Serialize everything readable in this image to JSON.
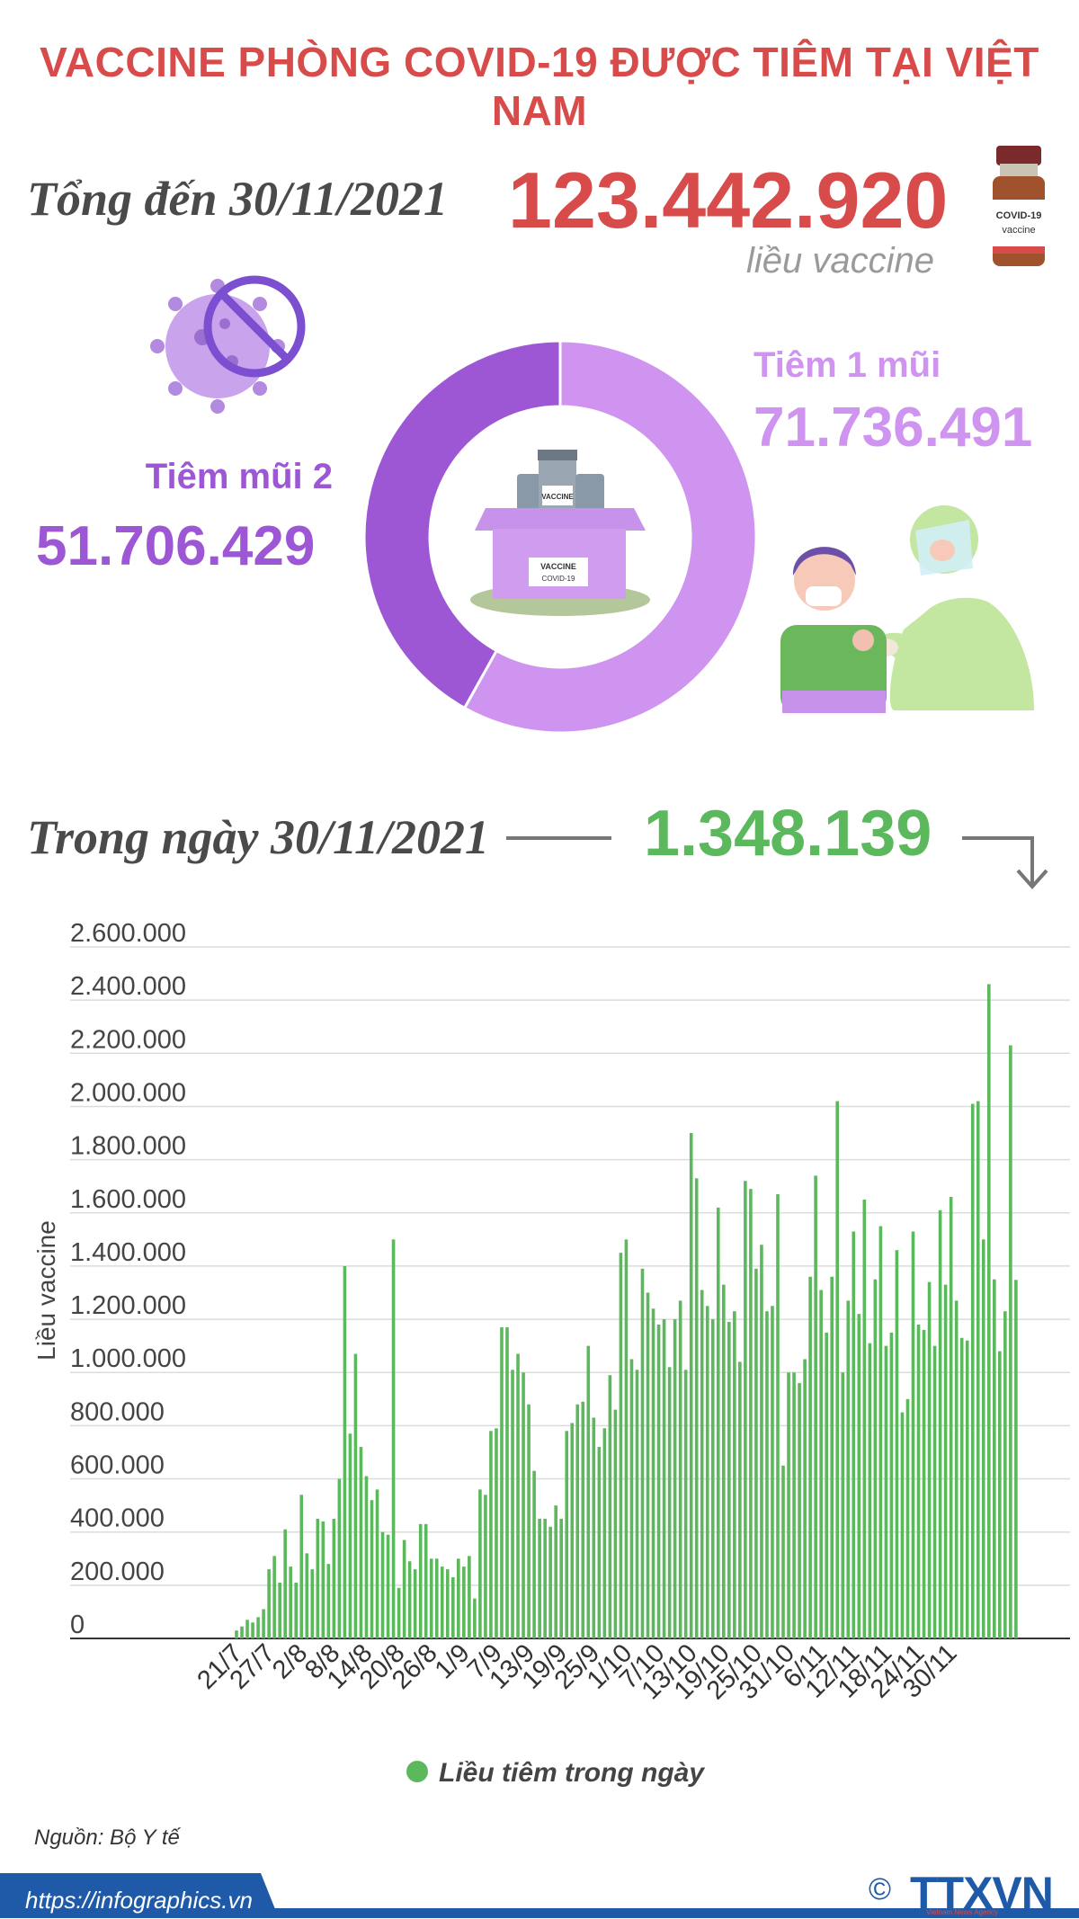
{
  "header": {
    "title": "VACCINE PHÒNG COVID-19 ĐƯỢC TIÊM TẠI VIỆT NAM"
  },
  "summary": {
    "total_label": "Tổng đến 30/11/2021",
    "total_value": "123.442.920",
    "total_unit": "liều vaccine",
    "dose1_label": "Tiêm 1 mũi",
    "dose1_value": "71.736.491",
    "dose2_label": "Tiêm mũi 2",
    "dose2_value": "51.706.429",
    "daily_label": "Trong ngày 30/11/2021",
    "daily_value": "1.348.139"
  },
  "illustrations": {
    "vial_text": "COVID-19",
    "vial_subtext": "vaccine",
    "box_label": "VACCINE",
    "box_sublabel": "COVID-19",
    "bottle_label": "VACCINE"
  },
  "colors": {
    "accent_red": "#d84b4b",
    "dose1": "#cf94f0",
    "dose2": "#9d56d4",
    "bars": "#5cb85c"
  },
  "donut_data": {
    "type": "pie",
    "slices": [
      {
        "name": "Tiêm 1 mũi",
        "value": 71736491
      },
      {
        "name": "Tiêm mũi 2",
        "value": 51706429
      }
    ]
  },
  "chart_data": {
    "type": "bar",
    "ylabel": "Liều vaccine",
    "ylim": [
      0,
      2600000
    ],
    "yticks": [
      "0",
      "200.000",
      "400.000",
      "600.000",
      "800.000",
      "1.000.000",
      "1.200.000",
      "1.400.000",
      "1.600.000",
      "1.800.000",
      "2.000.000",
      "2.200.000",
      "2.400.000",
      "2.600.000"
    ],
    "xtick_labels": [
      "21/7",
      "27/7",
      "2/8",
      "8/8",
      "14/8",
      "20/8",
      "26/8",
      "1/9",
      "7/9",
      "13/9",
      "19/9",
      "25/9",
      "1/10",
      "7/10",
      "13/10",
      "19/10",
      "25/10",
      "31/10",
      "6/11",
      "12/11",
      "18/11",
      "24/11",
      "30/11"
    ],
    "legend": "Liều tiêm trong ngày",
    "grid": true,
    "values": [
      30000,
      45000,
      70000,
      60000,
      80000,
      110000,
      260000,
      310000,
      210000,
      410000,
      270000,
      210000,
      540000,
      320000,
      260000,
      450000,
      440000,
      280000,
      450000,
      600000,
      1400000,
      770000,
      1070000,
      720000,
      610000,
      520000,
      560000,
      400000,
      390000,
      1500000,
      190000,
      370000,
      290000,
      260000,
      430000,
      430000,
      300000,
      300000,
      270000,
      260000,
      230000,
      300000,
      270000,
      310000,
      150000,
      560000,
      540000,
      780000,
      790000,
      1170000,
      1170000,
      1010000,
      1070000,
      1000000,
      880000,
      630000,
      450000,
      450000,
      420000,
      500000,
      450000,
      780000,
      810000,
      880000,
      890000,
      1100000,
      830000,
      720000,
      790000,
      990000,
      860000,
      1450000,
      1500000,
      1050000,
      1010000,
      1390000,
      1300000,
      1240000,
      1180000,
      1200000,
      1020000,
      1200000,
      1270000,
      1010000,
      1900000,
      1730000,
      1310000,
      1250000,
      1200000,
      1620000,
      1330000,
      1190000,
      1230000,
      1040000,
      1720000,
      1690000,
      1390000,
      1480000,
      1230000,
      1250000,
      1670000,
      650000,
      1000000,
      1000000,
      960000,
      1050000,
      1360000,
      1740000,
      1310000,
      1150000,
      1360000,
      2020000,
      1000000,
      1270000,
      1530000,
      1220000,
      1650000,
      1110000,
      1350000,
      1550000,
      1100000,
      1150000,
      1460000,
      850000,
      900000,
      1530000,
      1180000,
      1160000,
      1340000,
      1100000,
      1610000,
      1330000,
      1660000,
      1270000,
      1130000,
      1120000,
      2010000,
      2020000,
      1500000,
      2460000,
      1350000,
      1080000,
      1230000,
      2230000,
      1348139
    ]
  },
  "footer": {
    "source": "Nguồn: Bộ Y tế",
    "website": "https://infographics.vn",
    "copyright": "©",
    "brand": "TTXVN",
    "brand_sub": "Vietnam News Agency"
  }
}
